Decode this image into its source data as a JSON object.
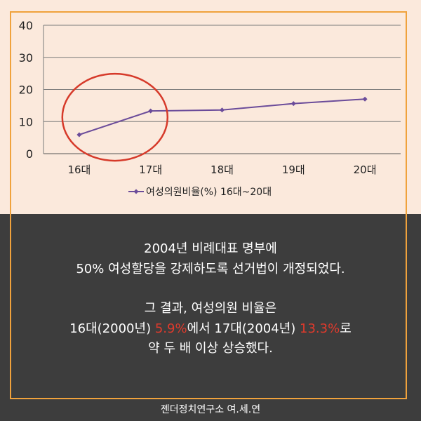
{
  "chart_data": {
    "type": "line",
    "categories": [
      "16대",
      "17대",
      "18대",
      "19대",
      "20대"
    ],
    "series": [
      {
        "name": "여성의원비율(%) 16대~20대",
        "values": [
          5.9,
          13.3,
          13.6,
          15.6,
          17.0
        ],
        "color": "#6b4c9a"
      }
    ],
    "ylim": [
      0,
      40
    ],
    "yticks": [
      0,
      10,
      20,
      30,
      40
    ],
    "grid": true,
    "legend": "bottom",
    "annotation": {
      "type": "circle",
      "color": "#d63a2a",
      "target": "16대–17대"
    }
  },
  "message": {
    "line1": "2004년 비례대표 명부에",
    "line2": "50% 여성할당을 강제하도록 선거법이 개정되었다.",
    "line3": "그 결과, 여성의원 비율은",
    "line4_a": "16대(2000년) ",
    "line4_b": "5.9%",
    "line4_c": "에서 17대(2004년) ",
    "line4_d": "13.3%",
    "line4_e": "로",
    "line5": "약 두 배 이상 상승했다."
  },
  "footer": "젠더정치연구소 여.세.연",
  "colors": {
    "top_bg": "#fbe9dc",
    "bottom_bg": "#3d3d3d",
    "frame": "#f0a23c",
    "highlight": "#e03a2c"
  }
}
